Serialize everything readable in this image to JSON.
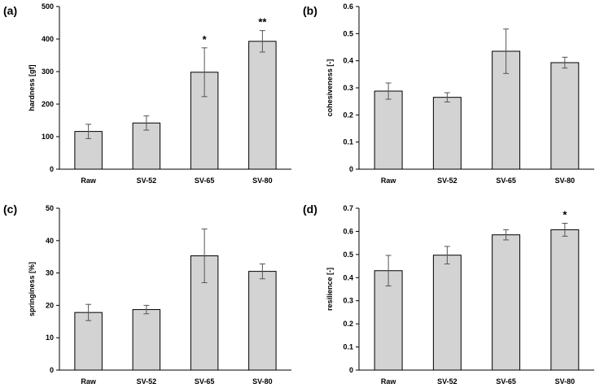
{
  "chart_data": [
    {
      "panel": "(a)",
      "type": "bar",
      "ylabel": "hardness  [gf]",
      "categories": [
        "Raw",
        "SV-52",
        "SV-65",
        "SV-80"
      ],
      "values": [
        116,
        142,
        298,
        393
      ],
      "errors": [
        22,
        22,
        75,
        33
      ],
      "significance": [
        "",
        "",
        "*",
        "**"
      ],
      "ylim": [
        0,
        500
      ],
      "yticks": [
        "0",
        "100",
        "200",
        "300",
        "400",
        "500"
      ]
    },
    {
      "panel": "(b)",
      "type": "bar",
      "ylabel": "cohesiveness  [-]",
      "categories": [
        "Raw",
        "SV-52",
        "SV-65",
        "SV-80"
      ],
      "values": [
        0.288,
        0.265,
        0.435,
        0.393
      ],
      "errors": [
        0.03,
        0.017,
        0.082,
        0.02
      ],
      "significance": [
        "",
        "",
        "",
        ""
      ],
      "ylim": [
        0,
        0.6
      ],
      "yticks": [
        "0",
        "0.1",
        "0.2",
        "0.3",
        "0.4",
        "0.5",
        "0.6"
      ]
    },
    {
      "panel": "(c)",
      "type": "bar",
      "ylabel": "springiness [%]",
      "categories": [
        "Raw",
        "SV-52",
        "SV-65",
        "SV-80"
      ],
      "values": [
        17.8,
        18.7,
        35.3,
        30.5
      ],
      "errors": [
        2.5,
        1.3,
        8.3,
        2.3
      ],
      "significance": [
        "",
        "",
        "",
        ""
      ],
      "ylim": [
        0,
        50
      ],
      "yticks": [
        "0",
        "10",
        "20",
        "30",
        "40",
        "50"
      ]
    },
    {
      "panel": "(d)",
      "type": "bar",
      "ylabel": "resilience  [-]",
      "categories": [
        "Raw",
        "SV-52",
        "SV-65",
        "SV-80"
      ],
      "values": [
        0.43,
        0.497,
        0.585,
        0.607
      ],
      "errors": [
        0.066,
        0.038,
        0.022,
        0.028
      ],
      "significance": [
        "",
        "",
        "",
        "*"
      ],
      "ylim": [
        0,
        0.7
      ],
      "yticks": [
        "0",
        "0.1",
        "0.2",
        "0.3",
        "0.4",
        "0.5",
        "0.6",
        "0.7"
      ]
    }
  ],
  "colors": {
    "bar_fill": "#d3d3d3",
    "bar_stroke": "#000000",
    "axis": "#000000",
    "error": "#555555"
  }
}
